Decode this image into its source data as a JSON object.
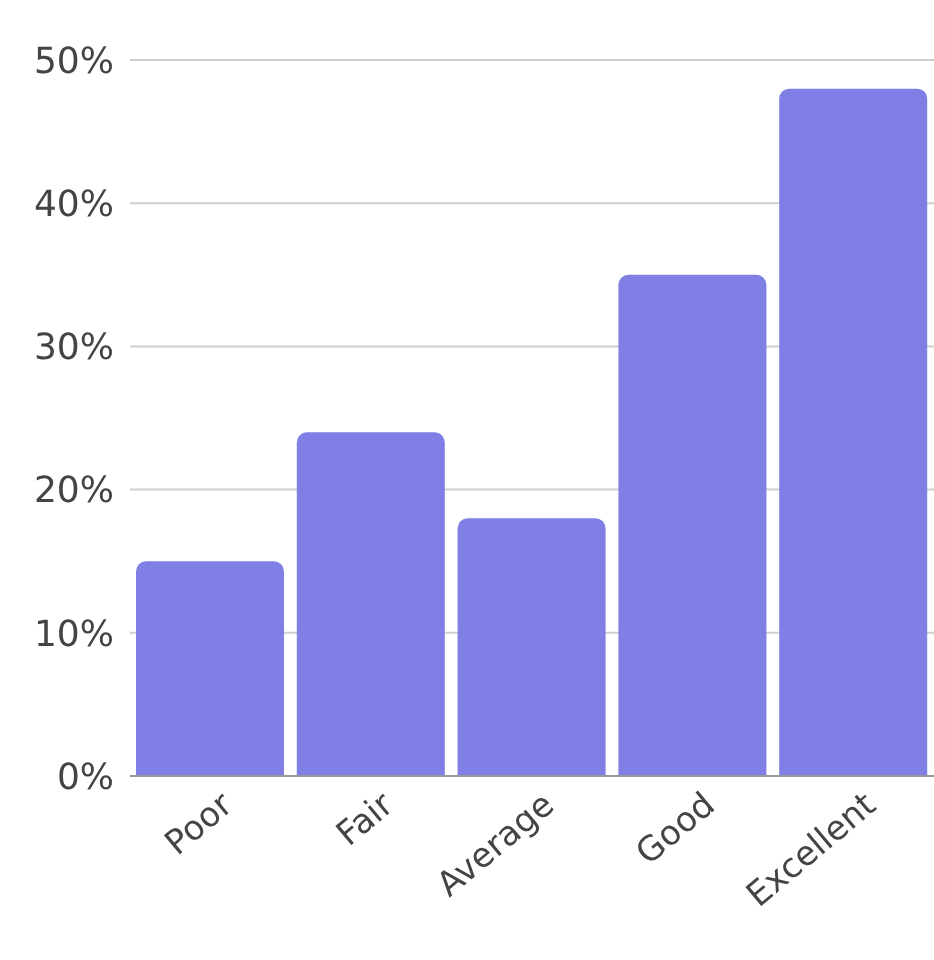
{
  "chart_data": {
    "type": "bar",
    "categories": [
      "Poor",
      "Fair",
      "Average",
      "Good",
      "Excellent"
    ],
    "values": [
      15,
      24,
      18,
      35,
      48
    ],
    "color": "#7f7fe6",
    "ylim": [
      0,
      50
    ],
    "yticks": [
      {
        "value": 0,
        "label": "0%"
      },
      {
        "value": 10,
        "label": "10%"
      },
      {
        "value": 20,
        "label": "20%"
      },
      {
        "value": 30,
        "label": "30%"
      },
      {
        "value": 40,
        "label": "40%"
      },
      {
        "value": 50,
        "label": "50%"
      }
    ],
    "grid": "y"
  }
}
